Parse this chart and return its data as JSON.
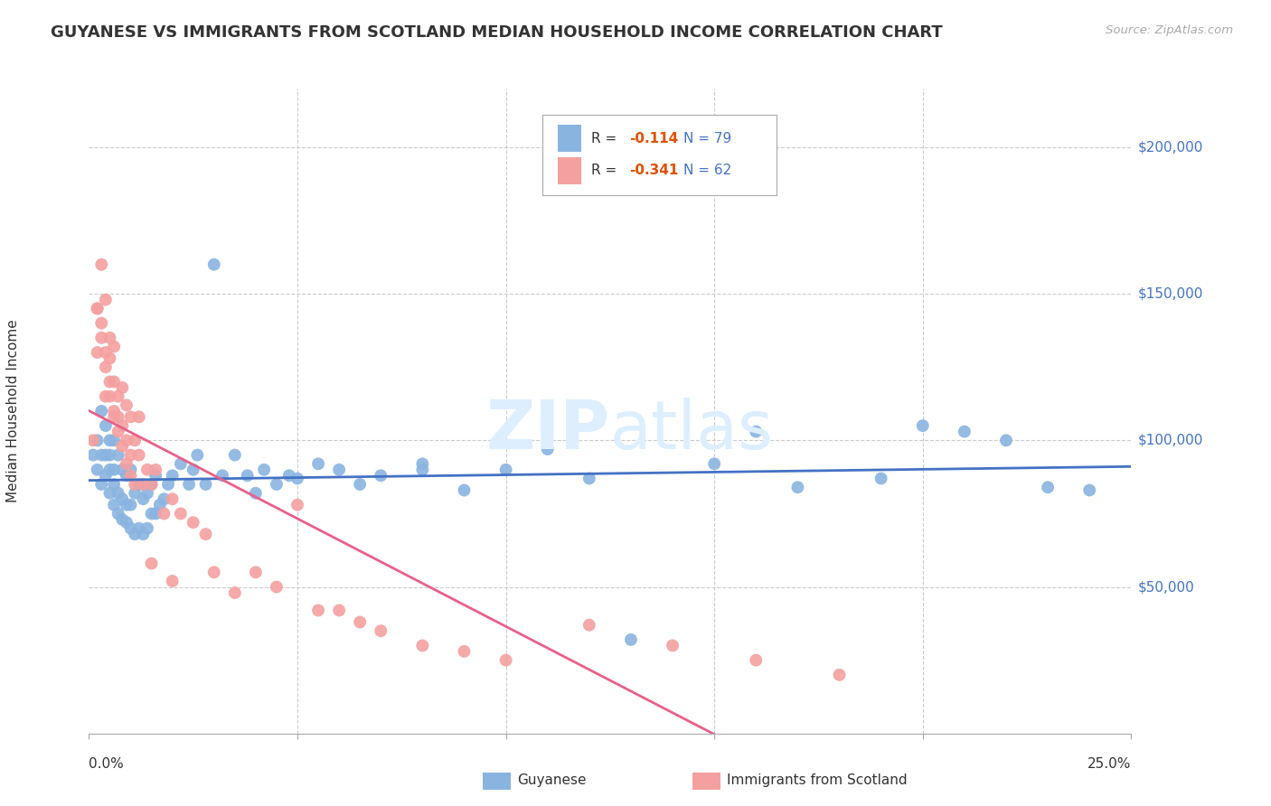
{
  "title": "GUYANESE VS IMMIGRANTS FROM SCOTLAND MEDIAN HOUSEHOLD INCOME CORRELATION CHART",
  "source": "Source: ZipAtlas.com",
  "ylabel": "Median Household Income",
  "xlim": [
    0.0,
    0.25
  ],
  "ylim": [
    0,
    220000
  ],
  "legend_blue_r": "-0.114",
  "legend_blue_n": "79",
  "legend_pink_r": "-0.341",
  "legend_pink_n": "62",
  "blue_color": "#8ab4e0",
  "pink_color": "#f4a0a0",
  "trendline_blue_color": "#4472c4",
  "trendline_pink_color": "#e8608a",
  "ytick_positions": [
    50000,
    100000,
    150000,
    200000
  ],
  "ytick_labels": [
    "$50,000",
    "$100,000",
    "$150,000",
    "$200,000"
  ],
  "xtick_positions": [
    0.0,
    0.05,
    0.1,
    0.15,
    0.2,
    0.25
  ],
  "blue_scatter_x": [
    0.001,
    0.002,
    0.002,
    0.003,
    0.003,
    0.003,
    0.004,
    0.004,
    0.004,
    0.005,
    0.005,
    0.005,
    0.005,
    0.006,
    0.006,
    0.006,
    0.006,
    0.007,
    0.007,
    0.007,
    0.008,
    0.008,
    0.008,
    0.009,
    0.009,
    0.009,
    0.01,
    0.01,
    0.01,
    0.011,
    0.011,
    0.012,
    0.012,
    0.013,
    0.013,
    0.014,
    0.014,
    0.015,
    0.015,
    0.016,
    0.016,
    0.017,
    0.018,
    0.019,
    0.02,
    0.022,
    0.024,
    0.025,
    0.026,
    0.028,
    0.03,
    0.032,
    0.035,
    0.038,
    0.04,
    0.042,
    0.045,
    0.048,
    0.05,
    0.055,
    0.06,
    0.065,
    0.07,
    0.08,
    0.09,
    0.1,
    0.12,
    0.13,
    0.15,
    0.17,
    0.19,
    0.21,
    0.23,
    0.08,
    0.11,
    0.16,
    0.2,
    0.22,
    0.24
  ],
  "blue_scatter_y": [
    95000,
    90000,
    100000,
    85000,
    95000,
    110000,
    88000,
    95000,
    105000,
    82000,
    90000,
    95000,
    100000,
    78000,
    85000,
    90000,
    100000,
    75000,
    82000,
    95000,
    73000,
    80000,
    90000,
    72000,
    78000,
    88000,
    70000,
    78000,
    90000,
    68000,
    82000,
    70000,
    85000,
    68000,
    80000,
    70000,
    82000,
    75000,
    85000,
    75000,
    88000,
    78000,
    80000,
    85000,
    88000,
    92000,
    85000,
    90000,
    95000,
    85000,
    160000,
    88000,
    95000,
    88000,
    82000,
    90000,
    85000,
    88000,
    87000,
    92000,
    90000,
    85000,
    88000,
    92000,
    83000,
    90000,
    87000,
    32000,
    92000,
    84000,
    87000,
    103000,
    84000,
    90000,
    97000,
    103000,
    105000,
    100000,
    83000
  ],
  "pink_scatter_x": [
    0.001,
    0.002,
    0.002,
    0.003,
    0.003,
    0.004,
    0.004,
    0.004,
    0.005,
    0.005,
    0.005,
    0.006,
    0.006,
    0.006,
    0.007,
    0.007,
    0.008,
    0.008,
    0.009,
    0.009,
    0.01,
    0.01,
    0.011,
    0.012,
    0.012,
    0.013,
    0.014,
    0.015,
    0.016,
    0.018,
    0.02,
    0.022,
    0.025,
    0.028,
    0.03,
    0.035,
    0.04,
    0.045,
    0.05,
    0.055,
    0.06,
    0.065,
    0.07,
    0.08,
    0.09,
    0.1,
    0.12,
    0.14,
    0.16,
    0.18,
    0.002,
    0.003,
    0.004,
    0.005,
    0.006,
    0.007,
    0.008,
    0.009,
    0.01,
    0.011,
    0.015,
    0.02
  ],
  "pink_scatter_y": [
    100000,
    145000,
    130000,
    160000,
    135000,
    148000,
    130000,
    115000,
    120000,
    128000,
    135000,
    110000,
    120000,
    132000,
    108000,
    115000,
    105000,
    118000,
    100000,
    112000,
    95000,
    108000,
    100000,
    95000,
    108000,
    85000,
    90000,
    85000,
    90000,
    75000,
    80000,
    75000,
    72000,
    68000,
    55000,
    48000,
    55000,
    50000,
    78000,
    42000,
    42000,
    38000,
    35000,
    30000,
    28000,
    25000,
    37000,
    30000,
    25000,
    20000,
    145000,
    140000,
    125000,
    115000,
    108000,
    103000,
    98000,
    92000,
    88000,
    85000,
    58000,
    52000
  ]
}
